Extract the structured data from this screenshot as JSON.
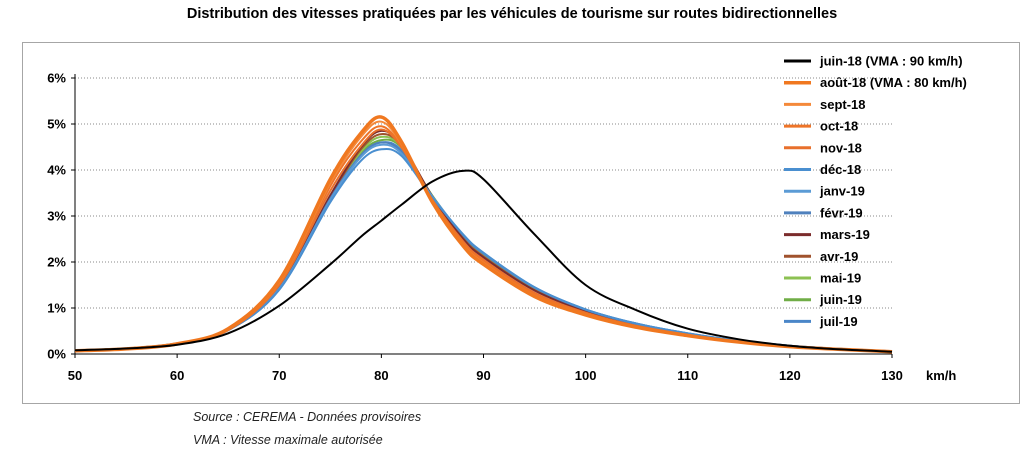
{
  "chart_data": {
    "type": "line",
    "title": "Distribution des vitesses pratiquées par les véhicules de tourisme sur routes bidirectionnelles",
    "xlabel": "km/h",
    "ylabel": "",
    "xlim": [
      50,
      130
    ],
    "ylim": [
      0,
      6
    ],
    "x_ticks": [
      "50",
      "60",
      "70",
      "80",
      "90",
      "100",
      "110",
      "120",
      "130"
    ],
    "y_ticks": [
      "0%",
      "1%",
      "2%",
      "3%",
      "4%",
      "5%",
      "6%"
    ],
    "grid": "horizontal dotted",
    "legend_position": "right",
    "x": [
      50,
      55,
      60,
      65,
      70,
      75,
      78,
      80,
      82,
      85,
      88,
      90,
      95,
      100,
      105,
      110,
      115,
      120,
      125,
      130
    ],
    "series": [
      {
        "name": "juin-18 (VMA : 90 km/h)",
        "color": "#000000",
        "width": 2,
        "values": [
          0.08,
          0.12,
          0.2,
          0.45,
          1.05,
          1.95,
          2.55,
          2.9,
          3.25,
          3.75,
          3.98,
          3.8,
          2.6,
          1.5,
          0.95,
          0.55,
          0.32,
          0.18,
          0.1,
          0.05
        ]
      },
      {
        "name": "août-18 (VMA : 80 km/h)",
        "color": "#f07820",
        "width": 3.5,
        "values": [
          0.07,
          0.11,
          0.22,
          0.55,
          1.6,
          3.8,
          4.8,
          5.15,
          4.6,
          3.3,
          2.35,
          1.95,
          1.25,
          0.85,
          0.58,
          0.4,
          0.26,
          0.16,
          0.1,
          0.05
        ]
      },
      {
        "name": "sept-18",
        "color": "#f4893a",
        "width": 2,
        "values": [
          0.07,
          0.11,
          0.22,
          0.54,
          1.56,
          3.72,
          4.72,
          5.05,
          4.55,
          3.3,
          2.38,
          1.98,
          1.27,
          0.86,
          0.59,
          0.4,
          0.26,
          0.16,
          0.1,
          0.05
        ]
      },
      {
        "name": "oct-18",
        "color": "#ee7428",
        "width": 2,
        "values": [
          0.07,
          0.11,
          0.22,
          0.53,
          1.52,
          3.65,
          4.62,
          4.95,
          4.5,
          3.32,
          2.42,
          2.02,
          1.3,
          0.88,
          0.6,
          0.41,
          0.27,
          0.17,
          0.1,
          0.05
        ]
      },
      {
        "name": "nov-18",
        "color": "#e8702c",
        "width": 2,
        "values": [
          0.07,
          0.11,
          0.22,
          0.52,
          1.5,
          3.55,
          4.52,
          4.88,
          4.48,
          3.35,
          2.45,
          2.05,
          1.33,
          0.9,
          0.61,
          0.42,
          0.27,
          0.17,
          0.1,
          0.05
        ]
      },
      {
        "name": "déc-18",
        "color": "#4a8fd0",
        "width": 2,
        "values": [
          0.08,
          0.12,
          0.23,
          0.52,
          1.4,
          3.3,
          4.2,
          4.45,
          4.3,
          3.4,
          2.6,
          2.2,
          1.45,
          0.97,
          0.66,
          0.45,
          0.29,
          0.18,
          0.11,
          0.06
        ]
      },
      {
        "name": "janv-19",
        "color": "#5b9bd5",
        "width": 2,
        "values": [
          0.08,
          0.12,
          0.23,
          0.52,
          1.42,
          3.35,
          4.28,
          4.55,
          4.35,
          3.42,
          2.6,
          2.2,
          1.45,
          0.97,
          0.66,
          0.45,
          0.29,
          0.18,
          0.11,
          0.06
        ]
      },
      {
        "name": "févr-19",
        "color": "#4f81bd",
        "width": 2,
        "values": [
          0.08,
          0.12,
          0.23,
          0.52,
          1.43,
          3.38,
          4.32,
          4.6,
          4.38,
          3.42,
          2.58,
          2.18,
          1.44,
          0.96,
          0.65,
          0.44,
          0.29,
          0.18,
          0.11,
          0.06
        ]
      },
      {
        "name": "mars-19",
        "color": "#7b2c2c",
        "width": 2,
        "values": [
          0.08,
          0.12,
          0.22,
          0.52,
          1.45,
          3.45,
          4.5,
          4.85,
          4.55,
          3.42,
          2.5,
          2.1,
          1.38,
          0.93,
          0.63,
          0.43,
          0.28,
          0.17,
          0.1,
          0.05
        ]
      },
      {
        "name": "avr-19",
        "color": "#a0522d",
        "width": 2,
        "values": [
          0.08,
          0.12,
          0.22,
          0.52,
          1.45,
          3.42,
          4.45,
          4.78,
          4.52,
          3.42,
          2.52,
          2.12,
          1.39,
          0.94,
          0.64,
          0.43,
          0.28,
          0.17,
          0.1,
          0.05
        ]
      },
      {
        "name": "mai-19",
        "color": "#8cc152",
        "width": 2,
        "values": [
          0.08,
          0.12,
          0.22,
          0.52,
          1.45,
          3.4,
          4.4,
          4.72,
          4.5,
          3.42,
          2.54,
          2.14,
          1.4,
          0.95,
          0.64,
          0.44,
          0.28,
          0.17,
          0.1,
          0.05
        ]
      },
      {
        "name": "juin-19",
        "color": "#70ad47",
        "width": 2,
        "values": [
          0.08,
          0.12,
          0.22,
          0.52,
          1.42,
          3.35,
          4.35,
          4.65,
          4.48,
          3.44,
          2.56,
          2.16,
          1.42,
          0.96,
          0.65,
          0.44,
          0.28,
          0.17,
          0.1,
          0.05
        ]
      },
      {
        "name": "juil-19",
        "color": "#4a86c8",
        "width": 2,
        "values": [
          0.08,
          0.12,
          0.23,
          0.52,
          1.4,
          3.32,
          4.3,
          4.6,
          4.42,
          3.44,
          2.58,
          2.18,
          1.44,
          0.97,
          0.66,
          0.45,
          0.29,
          0.18,
          0.11,
          0.06
        ]
      }
    ]
  },
  "footnotes": {
    "source": "Source : CEREMA - Données provisoires",
    "vma": "VMA : Vitesse maximale autorisée"
  }
}
